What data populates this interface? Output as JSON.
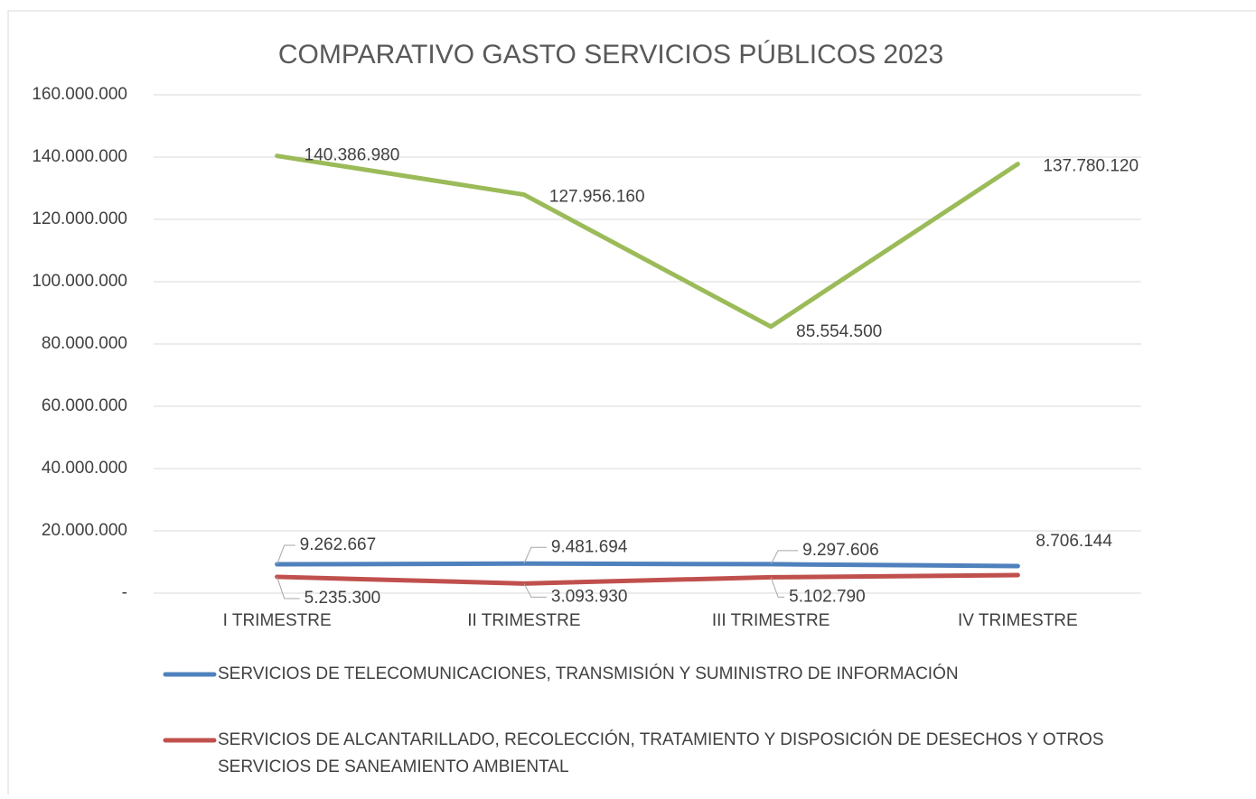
{
  "chart_data": {
    "type": "line",
    "title": "COMPARATIVO GASTO SERVICIOS PÚBLICOS 2023",
    "categories": [
      "I TRIMESTRE",
      "II TRIMESTRE",
      "III TRIMESTRE",
      "IV TRIMESTRE"
    ],
    "series": [
      {
        "color": "#9bbb59",
        "values": [
          140386980,
          127956160,
          85554500,
          137780120
        ],
        "value_labels": [
          "140.386.980",
          "127.956.160",
          "85.554.500",
          "137.780.120"
        ]
      },
      {
        "name": "SERVICIOS DE TELECOMUNICACIONES, TRANSMISIÓN Y SUMINISTRO DE INFORMACIÓN",
        "color": "#4f81bd",
        "values": [
          9262667,
          9481694,
          9297606,
          8706144
        ],
        "value_labels": [
          "9.262.667",
          "9.481.694",
          "9.297.606",
          "8.706.144"
        ]
      },
      {
        "name": "SERVICIOS DE ALCANTARILLADO, RECOLECCIÓN, TRATAMIENTO Y DISPOSICIÓN DE DESECHOS Y OTROS SERVICIOS DE SANEAMIENTO AMBIENTAL",
        "color": "#c0504d",
        "values": [
          5235300,
          3093930,
          5102790,
          5800000
        ],
        "value_labels": [
          "5.235.300",
          "3.093.930",
          "5.102.790",
          null
        ]
      }
    ],
    "ylim": [
      0,
      160000000
    ],
    "yticks": [
      {
        "value": 0,
        "label": "-"
      },
      {
        "value": 20000000,
        "label": "20.000.000"
      },
      {
        "value": 40000000,
        "label": "40.000.000"
      },
      {
        "value": 60000000,
        "label": "60.000.000"
      },
      {
        "value": 80000000,
        "label": "80.000.000"
      },
      {
        "value": 100000000,
        "label": "100.000.000"
      },
      {
        "value": 120000000,
        "label": "120.000.000"
      },
      {
        "value": 140000000,
        "label": "140.000.000"
      },
      {
        "value": 160000000,
        "label": "160.000.000"
      }
    ],
    "grid": true
  }
}
